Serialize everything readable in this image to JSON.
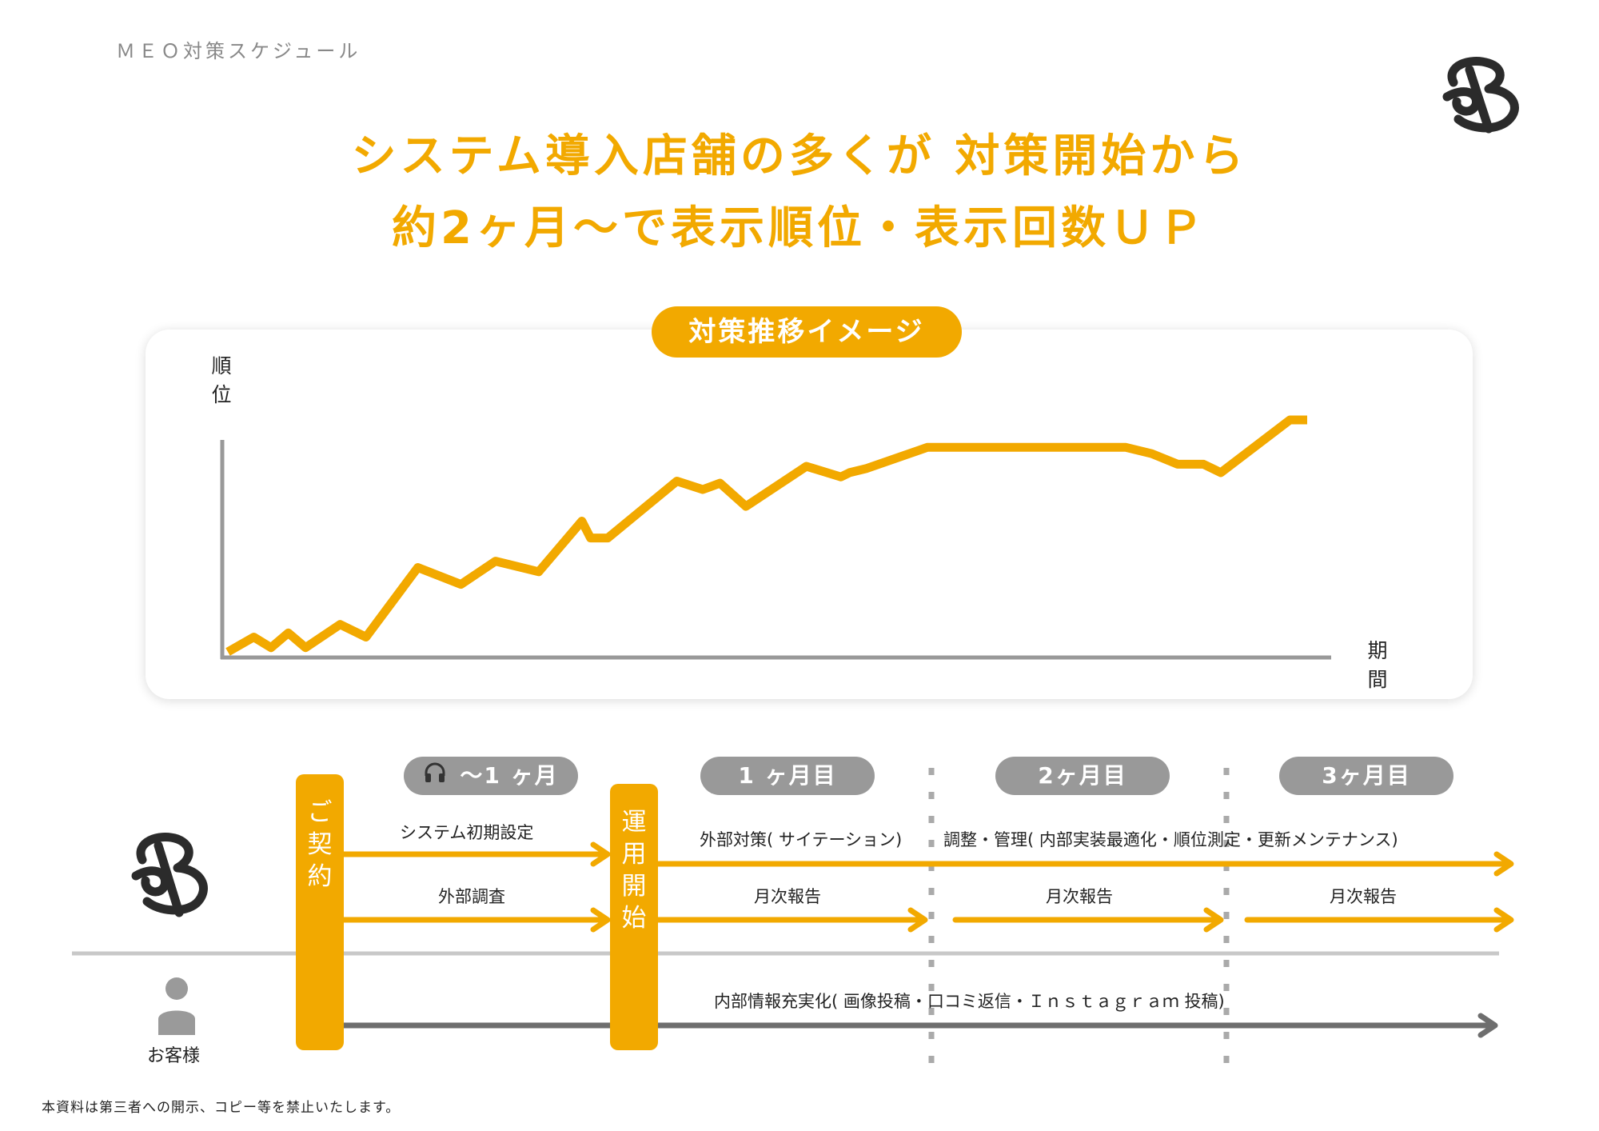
{
  "header": {
    "subtitle": "ＭＥＯ対策スケジュール",
    "headline_line1": "システム導入店舗の多くが 対策開始から",
    "headline_line2": "約2ヶ月～で表示順位・表示回数ＵＰ"
  },
  "chart_pill": "対策推移イメージ",
  "chart_data": {
    "type": "line",
    "title": "対策推移イメージ",
    "ylabel": "順位",
    "xlabel": "期間",
    "grid": false,
    "legend": "none",
    "color": "#f2a900",
    "x": [
      0,
      3,
      5,
      7,
      9,
      13,
      16,
      22,
      27,
      31,
      36,
      41,
      42,
      44,
      52,
      55,
      57,
      60,
      67,
      71,
      72,
      74,
      81,
      104,
      107,
      110,
      113,
      115,
      123,
      125
    ],
    "y": [
      0,
      7,
      2,
      9,
      2,
      13,
      7,
      40,
      32,
      43,
      38,
      62,
      54,
      54,
      81,
      77,
      80,
      69,
      88,
      83,
      85,
      87,
      97,
      97,
      94,
      89,
      89,
      85,
      110,
      110
    ],
    "xlim": [
      0,
      130
    ],
    "ylim": [
      0,
      120
    ]
  },
  "periods": [
    {
      "label": "～1 ヶ月",
      "icon": "headset-icon"
    },
    {
      "label": "1 ヶ月目"
    },
    {
      "label": "2ヶ月目"
    },
    {
      "label": "3ヶ月目"
    }
  ],
  "bars": {
    "contract": [
      "ご",
      "契",
      "約"
    ],
    "operation": [
      "運",
      "用",
      "開",
      "始"
    ]
  },
  "timeline": {
    "initial_setup": "システム初期設定",
    "external_research": "外部調査",
    "external_measures": "外部対策( サイテーション)",
    "management": "調整・管理( 内部実装最適化・順位測定・更新メンテナンス)",
    "monthly_report": "月次報告",
    "internal_info": "内部情報充実化( 画像投稿・口コミ返信・Ｉｎｓｔａｇｒａｍ 投稿)"
  },
  "customer_label": "お客様",
  "footer": "本資料は第三者への開示、コピー等を禁止いたします。",
  "colors": {
    "accent": "#f2a900",
    "gray_pill": "#999999",
    "axis": "#999999",
    "dark_arrow": "#6e6e6e",
    "logo": "#2b2b2b"
  }
}
